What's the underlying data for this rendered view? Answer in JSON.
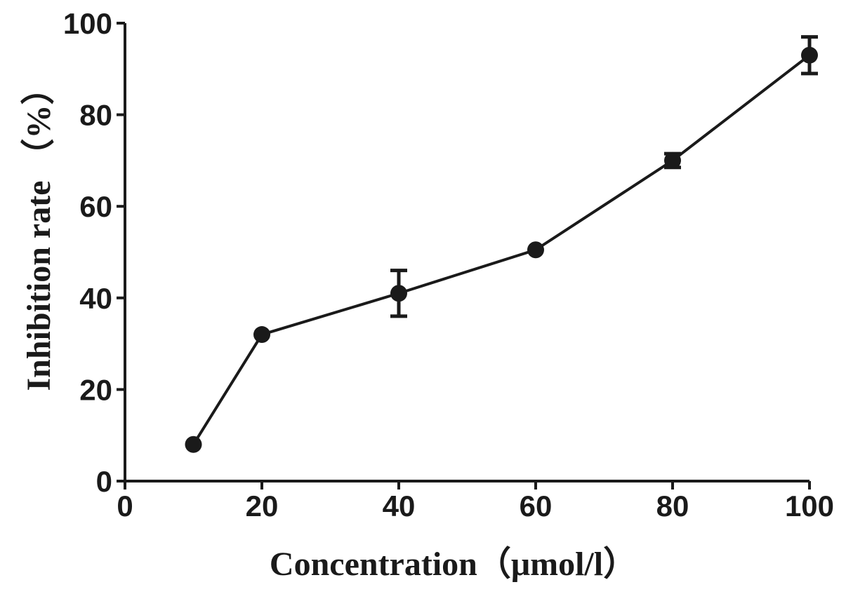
{
  "chart_data": {
    "type": "line",
    "title": "",
    "xlabel": "Concentration（μmol/l）",
    "ylabel": "Inhibition rate （%）",
    "xlim": [
      0,
      100
    ],
    "ylim": [
      0,
      100
    ],
    "x_ticks": [
      0,
      20,
      40,
      60,
      80,
      100
    ],
    "y_ticks": [
      0,
      20,
      40,
      60,
      80,
      100
    ],
    "grid": false,
    "legend": "none",
    "series": [
      {
        "x": [
          10,
          20,
          40,
          60,
          80,
          100
        ],
        "y": [
          8,
          32,
          41,
          50.5,
          70,
          93
        ],
        "error": [
          0,
          0,
          5,
          0,
          1.5,
          4
        ],
        "color": "#1a1a1a",
        "marker": "circle"
      }
    ]
  }
}
